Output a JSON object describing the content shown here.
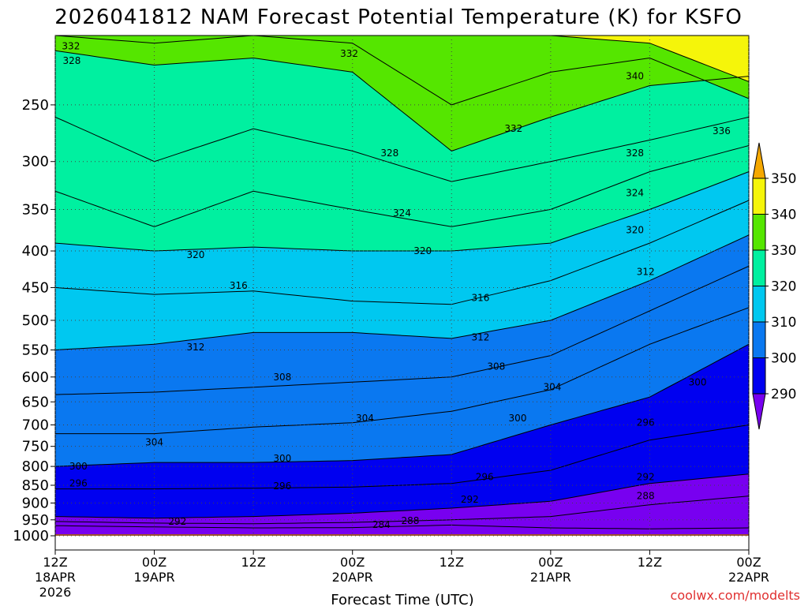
{
  "chart_data": {
    "type": "heatmap",
    "title": "2026041812 NAM Forecast Potential Temperature (K) for KSFO",
    "xlabel": "Forecast Time (UTC)",
    "ylabel": "",
    "credit": "coolwx.com/modelts",
    "y_scale": "log-pressure",
    "ylim": [
      1000,
      200
    ],
    "y_ticks": [
      250,
      300,
      350,
      400,
      450,
      500,
      550,
      600,
      650,
      700,
      750,
      800,
      850,
      900,
      950,
      1000
    ],
    "x_ticks": [
      {
        "hours": 0,
        "label": "12Z",
        "sub": "18APR",
        "year": "2026"
      },
      {
        "hours": 12,
        "label": "00Z",
        "sub": "19APR",
        "year": ""
      },
      {
        "hours": 24,
        "label": "12Z",
        "sub": "",
        "year": ""
      },
      {
        "hours": 36,
        "label": "00Z",
        "sub": "20APR",
        "year": ""
      },
      {
        "hours": 48,
        "label": "12Z",
        "sub": "",
        "year": ""
      },
      {
        "hours": 60,
        "label": "00Z",
        "sub": "21APR",
        "year": ""
      },
      {
        "hours": 72,
        "label": "12Z",
        "sub": "",
        "year": ""
      },
      {
        "hours": 84,
        "label": "00Z",
        "sub": "22APR",
        "year": ""
      }
    ],
    "xlim": [
      0,
      84
    ],
    "grid": true,
    "colorbar": {
      "labels": [
        "350",
        "340",
        "330",
        "320",
        "310",
        "300",
        "290"
      ],
      "bins": [
        {
          "low": 350,
          "color": "#f5a800"
        },
        {
          "low": 340,
          "color": "#f5f50a"
        },
        {
          "low": 330,
          "color": "#55e600"
        },
        {
          "low": 320,
          "color": "#00f0a0"
        },
        {
          "low": 310,
          "color": "#00c8f0"
        },
        {
          "low": 300,
          "color": "#0a78f0"
        },
        {
          "low": 290,
          "color": "#0000f0"
        },
        {
          "low": 280,
          "color": "#7800f0"
        }
      ]
    },
    "surface_color": "#a0522d",
    "isotherms": [
      {
        "value": 284,
        "levels": [
          [
            0,
            968
          ],
          [
            12,
            972
          ],
          [
            24,
            975
          ],
          [
            36,
            974
          ],
          [
            48,
            966
          ],
          [
            60,
            975
          ],
          [
            72,
            978
          ],
          [
            84,
            975
          ]
        ]
      },
      {
        "value": 288,
        "levels": [
          [
            0,
            955
          ],
          [
            12,
            960
          ],
          [
            24,
            962
          ],
          [
            36,
            958
          ],
          [
            48,
            950
          ],
          [
            60,
            940
          ],
          [
            72,
            905
          ],
          [
            84,
            880
          ]
        ]
      },
      {
        "value": 292,
        "levels": [
          [
            0,
            940
          ],
          [
            12,
            945
          ],
          [
            24,
            940
          ],
          [
            36,
            930
          ],
          [
            48,
            915
          ],
          [
            60,
            895
          ],
          [
            72,
            845
          ],
          [
            84,
            820
          ]
        ]
      },
      {
        "value": 296,
        "levels": [
          [
            0,
            860
          ],
          [
            12,
            860
          ],
          [
            24,
            858
          ],
          [
            36,
            855
          ],
          [
            48,
            845
          ],
          [
            60,
            810
          ],
          [
            72,
            735
          ],
          [
            84,
            700
          ]
        ]
      },
      {
        "value": 300,
        "levels": [
          [
            0,
            800
          ],
          [
            12,
            790
          ],
          [
            24,
            790
          ],
          [
            36,
            785
          ],
          [
            48,
            770
          ],
          [
            60,
            700
          ],
          [
            72,
            640
          ],
          [
            84,
            540
          ]
        ]
      },
      {
        "value": 304,
        "levels": [
          [
            0,
            720
          ],
          [
            12,
            720
          ],
          [
            24,
            705
          ],
          [
            36,
            695
          ],
          [
            48,
            670
          ],
          [
            60,
            625
          ],
          [
            72,
            540
          ],
          [
            84,
            480
          ]
        ]
      },
      {
        "value": 308,
        "levels": [
          [
            0,
            635
          ],
          [
            12,
            630
          ],
          [
            24,
            620
          ],
          [
            36,
            610
          ],
          [
            48,
            600
          ],
          [
            60,
            560
          ],
          [
            72,
            485
          ],
          [
            84,
            420
          ]
        ]
      },
      {
        "value": 312,
        "levels": [
          [
            0,
            550
          ],
          [
            12,
            540
          ],
          [
            24,
            520
          ],
          [
            36,
            520
          ],
          [
            48,
            530
          ],
          [
            60,
            500
          ],
          [
            72,
            440
          ],
          [
            84,
            380
          ]
        ]
      },
      {
        "value": 316,
        "levels": [
          [
            0,
            450
          ],
          [
            12,
            460
          ],
          [
            24,
            455
          ],
          [
            36,
            470
          ],
          [
            48,
            475
          ],
          [
            60,
            440
          ],
          [
            72,
            390
          ],
          [
            84,
            340
          ]
        ]
      },
      {
        "value": 320,
        "levels": [
          [
            0,
            390
          ],
          [
            12,
            400
          ],
          [
            24,
            395
          ],
          [
            36,
            400
          ],
          [
            48,
            400
          ],
          [
            60,
            390
          ],
          [
            72,
            350
          ],
          [
            84,
            310
          ]
        ]
      },
      {
        "value": 324,
        "levels": [
          [
            0,
            330
          ],
          [
            12,
            370
          ],
          [
            24,
            330
          ],
          [
            36,
            350
          ],
          [
            48,
            370
          ],
          [
            60,
            350
          ],
          [
            72,
            310
          ],
          [
            84,
            285
          ]
        ]
      },
      {
        "value": 328,
        "levels": [
          [
            0,
            260
          ],
          [
            12,
            300
          ],
          [
            24,
            270
          ],
          [
            36,
            290
          ],
          [
            48,
            320
          ],
          [
            60,
            300
          ],
          [
            72,
            280
          ],
          [
            84,
            260
          ]
        ]
      },
      {
        "value": 332,
        "levels": [
          [
            0,
            210
          ],
          [
            12,
            220
          ],
          [
            24,
            215
          ],
          [
            36,
            225
          ],
          [
            48,
            290
          ],
          [
            60,
            260
          ],
          [
            72,
            235
          ],
          [
            84,
            228
          ]
        ]
      },
      {
        "value": 336,
        "levels": [
          [
            0,
            200
          ],
          [
            12,
            205
          ],
          [
            24,
            200
          ],
          [
            36,
            205
          ],
          [
            48,
            250
          ],
          [
            60,
            225
          ],
          [
            72,
            215
          ],
          [
            84,
            245
          ]
        ]
      },
      {
        "value": 340,
        "levels": [
          [
            0,
            195
          ],
          [
            12,
            195
          ],
          [
            24,
            195
          ],
          [
            36,
            195
          ],
          [
            48,
            200
          ],
          [
            60,
            200
          ],
          [
            72,
            205
          ],
          [
            84,
            232
          ]
        ]
      }
    ],
    "contour_labels": [
      {
        "text": "332",
        "hours": 1.9,
        "p": 207
      },
      {
        "text": "328",
        "hours": 2.0,
        "p": 217
      },
      {
        "text": "332",
        "hours": 35.6,
        "p": 212
      },
      {
        "text": "340",
        "hours": 70.2,
        "p": 228
      },
      {
        "text": "332",
        "hours": 55.5,
        "p": 270
      },
      {
        "text": "336",
        "hours": 80.7,
        "p": 272
      },
      {
        "text": "328",
        "hours": 40.5,
        "p": 292
      },
      {
        "text": "328",
        "hours": 70.2,
        "p": 292
      },
      {
        "text": "324",
        "hours": 70.2,
        "p": 332
      },
      {
        "text": "324",
        "hours": 42.0,
        "p": 354
      },
      {
        "text": "320",
        "hours": 70.2,
        "p": 374
      },
      {
        "text": "320",
        "hours": 17.0,
        "p": 405
      },
      {
        "text": "320",
        "hours": 44.5,
        "p": 400
      },
      {
        "text": "312",
        "hours": 71.5,
        "p": 428
      },
      {
        "text": "316",
        "hours": 22.2,
        "p": 447
      },
      {
        "text": "316",
        "hours": 51.5,
        "p": 465
      },
      {
        "text": "312",
        "hours": 51.5,
        "p": 528
      },
      {
        "text": "312",
        "hours": 17.0,
        "p": 545
      },
      {
        "text": "308",
        "hours": 53.4,
        "p": 580
      },
      {
        "text": "308",
        "hours": 27.5,
        "p": 600
      },
      {
        "text": "304",
        "hours": 60.2,
        "p": 620
      },
      {
        "text": "300",
        "hours": 77.8,
        "p": 610
      },
      {
        "text": "300",
        "hours": 56.0,
        "p": 685
      },
      {
        "text": "304",
        "hours": 37.5,
        "p": 685
      },
      {
        "text": "296",
        "hours": 71.5,
        "p": 695
      },
      {
        "text": "304",
        "hours": 12.0,
        "p": 740
      },
      {
        "text": "300",
        "hours": 27.5,
        "p": 780
      },
      {
        "text": "300",
        "hours": 2.8,
        "p": 800
      },
      {
        "text": "296",
        "hours": 52.0,
        "p": 828
      },
      {
        "text": "292",
        "hours": 71.5,
        "p": 828
      },
      {
        "text": "296",
        "hours": 2.8,
        "p": 845
      },
      {
        "text": "296",
        "hours": 27.5,
        "p": 852
      },
      {
        "text": "288",
        "hours": 71.5,
        "p": 880
      },
      {
        "text": "292",
        "hours": 50.2,
        "p": 890
      },
      {
        "text": "292",
        "hours": 14.8,
        "p": 955
      },
      {
        "text": "288",
        "hours": 43.0,
        "p": 953
      },
      {
        "text": "284",
        "hours": 39.5,
        "p": 965
      }
    ]
  }
}
